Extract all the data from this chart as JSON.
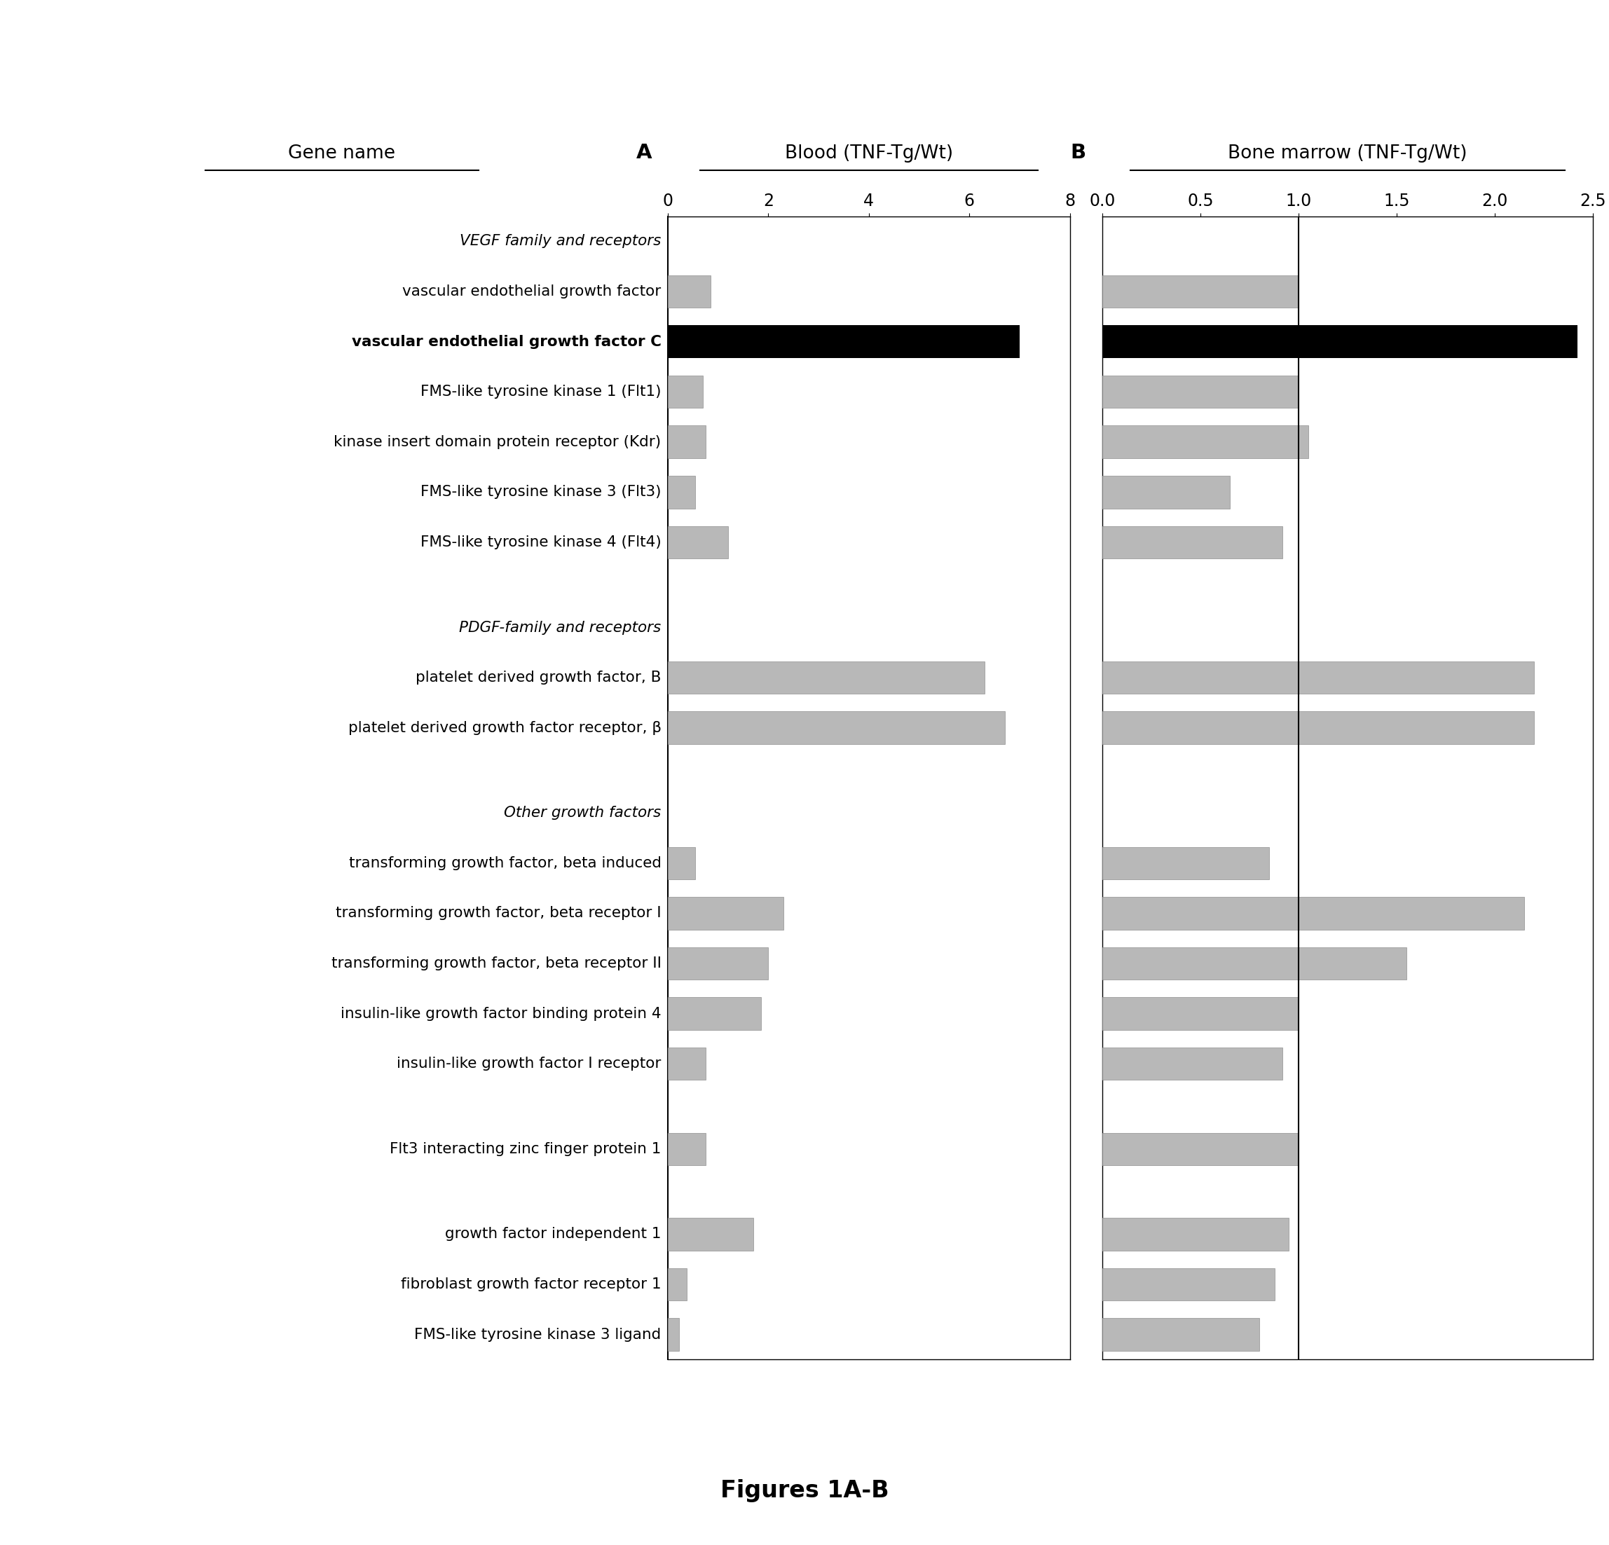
{
  "rows": [
    {
      "style": "italic",
      "label": "VEGF family and receptors",
      "blood": null,
      "bm": null
    },
    {
      "style": "normal",
      "label": "vascular endothelial growth factor",
      "blood": 0.85,
      "bm": 1.0
    },
    {
      "style": "bold",
      "label": "vascular endothelial growth factor C",
      "blood": 7.0,
      "bm": 2.42
    },
    {
      "style": "normal",
      "label": "FMS-like tyrosine kinase 1 (Flt1)",
      "blood": 0.7,
      "bm": 1.0
    },
    {
      "style": "normal",
      "label": "kinase insert domain protein receptor (Kdr)",
      "blood": 0.75,
      "bm": 1.05
    },
    {
      "style": "normal",
      "label": "FMS-like tyrosine kinase 3 (Flt3)",
      "blood": 0.55,
      "bm": 0.65
    },
    {
      "style": "normal",
      "label": "FMS-like tyrosine kinase 4 (Flt4)",
      "blood": 1.2,
      "bm": 0.92
    },
    {
      "style": "spacer",
      "label": "",
      "blood": null,
      "bm": null
    },
    {
      "style": "italic",
      "label": "PDGF-family and receptors",
      "blood": null,
      "bm": null
    },
    {
      "style": "normal",
      "label": "platelet derived growth factor, B",
      "blood": 6.3,
      "bm": 2.2
    },
    {
      "style": "normal",
      "label": "platelet derived growth factor receptor, β",
      "blood": 6.7,
      "bm": 2.2
    },
    {
      "style": "spacer",
      "label": "",
      "blood": null,
      "bm": null
    },
    {
      "style": "italic",
      "label": "Other growth factors",
      "blood": null,
      "bm": null
    },
    {
      "style": "normal",
      "label": "transforming growth factor, beta induced",
      "blood": 0.55,
      "bm": 0.85
    },
    {
      "style": "normal",
      "label": "transforming growth factor, beta receptor I",
      "blood": 2.3,
      "bm": 2.15
    },
    {
      "style": "normal",
      "label": "transforming growth factor, beta receptor II",
      "blood": 2.0,
      "bm": 1.55
    },
    {
      "style": "normal",
      "label": "insulin-like growth factor binding protein 4",
      "blood": 1.85,
      "bm": 1.0
    },
    {
      "style": "normal",
      "label": "insulin-like growth factor I receptor",
      "blood": 0.75,
      "bm": 0.92
    },
    {
      "style": "spacer",
      "label": "",
      "blood": null,
      "bm": null
    },
    {
      "style": "normal",
      "label": "Flt3 interacting zinc finger protein 1",
      "blood": 0.75,
      "bm": 1.0
    },
    {
      "style": "spacer",
      "label": "",
      "blood": null,
      "bm": null
    },
    {
      "style": "normal",
      "label": "growth factor independent 1",
      "blood": 1.7,
      "bm": 0.95
    },
    {
      "style": "normal",
      "label": "fibroblast growth factor receptor 1",
      "blood": 0.38,
      "bm": 0.88
    },
    {
      "style": "normal",
      "label": "FMS-like tyrosine kinase 3 ligand",
      "blood": 0.22,
      "bm": 0.8
    }
  ],
  "blood_xlim": [
    0,
    8
  ],
  "bm_xlim": [
    0,
    2.5
  ],
  "blood_xticks": [
    0,
    2,
    4,
    6,
    8
  ],
  "bm_xticks": [
    0,
    0.5,
    1.0,
    1.5,
    2.0,
    2.5
  ],
  "bar_color_normal": "#b8b8b8",
  "bar_color_black": "#000000",
  "label_A": "A",
  "label_B": "B",
  "header_A": "Blood (TNF-Tg/Wt)",
  "header_B": "Bone marrow (TNF-Tg/Wt)",
  "gene_name_header": "Gene name",
  "figure_title": "Figures 1A-B",
  "bg_color": "#ffffff"
}
